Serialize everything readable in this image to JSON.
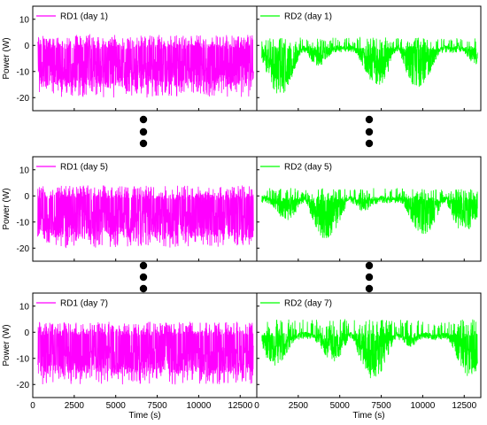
{
  "chart_data": [
    {
      "type": "line",
      "panel": "top-left",
      "series": [
        {
          "name": "RD1 (day 1)",
          "color": "#ff00ff"
        }
      ],
      "xlim": [
        0,
        13500
      ],
      "ylim": [
        -25,
        15
      ],
      "xticks": [
        0,
        2500,
        5000,
        7500,
        10000,
        12500
      ],
      "yticks": [
        10,
        0,
        -10,
        -20
      ],
      "ylabel": "Power (W)",
      "xlabel": "",
      "signal": {
        "baseline": -0.5,
        "spike_min": -20,
        "spike_max": 4,
        "t_start": 300,
        "t_end": 13300
      },
      "legend": "top-left"
    },
    {
      "type": "line",
      "panel": "top-right",
      "series": [
        {
          "name": "RD2 (day 1)",
          "color": "#00ff00"
        }
      ],
      "xlim": [
        0,
        13500
      ],
      "ylim": [
        -25,
        15
      ],
      "yticks": [
        10,
        0,
        -10,
        -20
      ],
      "ylabel": "",
      "xlabel": "",
      "signal": {
        "baseline": -1,
        "spike_min": -19,
        "spike_max": 3,
        "t_start": 300,
        "t_end": 13300
      },
      "legend": "top-left"
    },
    {
      "type": "line",
      "panel": "middle-left",
      "series": [
        {
          "name": "RD1 (day 5)",
          "color": "#ff00ff"
        }
      ],
      "xlim": [
        0,
        13500
      ],
      "ylim": [
        -25,
        15
      ],
      "yticks": [
        10,
        0,
        -10,
        -20
      ],
      "ylabel": "Power (W)",
      "xlabel": "",
      "signal": {
        "baseline": -0.5,
        "spike_min": -20,
        "spike_max": 4,
        "t_start": 300,
        "t_end": 13300
      },
      "legend": "top-left"
    },
    {
      "type": "line",
      "panel": "middle-right",
      "series": [
        {
          "name": "RD2 (day 5)",
          "color": "#00ff00"
        }
      ],
      "xlim": [
        0,
        13500
      ],
      "ylim": [
        -25,
        15
      ],
      "yticks": [
        10,
        0,
        -10,
        -20
      ],
      "ylabel": "",
      "xlabel": "",
      "signal": {
        "baseline": -1,
        "spike_min": -17,
        "spike_max": 3,
        "t_start": 300,
        "t_end": 13300
      },
      "legend": "top-left"
    },
    {
      "type": "line",
      "panel": "bottom-left",
      "series": [
        {
          "name": "RD1 (day 7)",
          "color": "#ff00ff"
        }
      ],
      "xlim": [
        0,
        13500
      ],
      "ylim": [
        -25,
        15
      ],
      "xticks": [
        0,
        2500,
        5000,
        7500,
        10000,
        12500
      ],
      "yticks": [
        10,
        0,
        -10,
        -20
      ],
      "ylabel": "Power (W)",
      "xlabel": "Time (s)",
      "signal": {
        "baseline": -0.5,
        "spike_min": -20,
        "spike_max": 4,
        "t_start": 300,
        "t_end": 13300
      },
      "legend": "top-left"
    },
    {
      "type": "line",
      "panel": "bottom-right",
      "series": [
        {
          "name": "RD2 (day 7)",
          "color": "#00ff00"
        }
      ],
      "xlim": [
        0,
        13500
      ],
      "ylim": [
        -25,
        15
      ],
      "xticks": [
        0,
        2500,
        5000,
        7500,
        10000,
        12500
      ],
      "yticks": [
        10,
        0,
        -10,
        -20
      ],
      "ylabel": "",
      "xlabel": "Time (s)",
      "signal": {
        "baseline": -1,
        "spike_min": -19,
        "spike_max": 5,
        "t_start": 300,
        "t_end": 13300
      },
      "legend": "top-left"
    }
  ],
  "separator_dots": 3
}
